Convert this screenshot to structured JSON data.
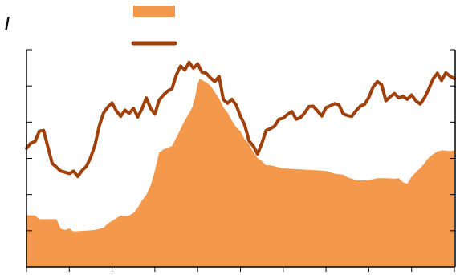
{
  "chart_data": {
    "type": "area",
    "title_mark": "/",
    "legend": {
      "placement": "top-center"
    },
    "x": {
      "range": [
        0,
        100
      ],
      "minor_ticks": 10
    },
    "y_left": {
      "range": [
        0,
        60
      ],
      "ticks": 6
    },
    "y_right": {
      "range": [
        0,
        60
      ],
      "ticks": 6
    },
    "colors": {
      "area": "#F4984C",
      "line": "#A0400A",
      "axis": "#000000"
    },
    "series": [
      {
        "kind": "area",
        "axis": "left",
        "color": "#F4984C",
        "points": [
          [
            0,
            14.3
          ],
          [
            2,
            14.2
          ],
          [
            3,
            13.2
          ],
          [
            7,
            13.2
          ],
          [
            8,
            10.6
          ],
          [
            9,
            10.2
          ],
          [
            10,
            10.6
          ],
          [
            11,
            9.8
          ],
          [
            14,
            10.0
          ],
          [
            16,
            10.2
          ],
          [
            18,
            10.8
          ],
          [
            19,
            12.0
          ],
          [
            20,
            12.7
          ],
          [
            22,
            14.2
          ],
          [
            24,
            14.2
          ],
          [
            25,
            14.9
          ],
          [
            26,
            16.4
          ],
          [
            27,
            18.4
          ],
          [
            28,
            19.9
          ],
          [
            29,
            22.5
          ],
          [
            30,
            26.6
          ],
          [
            31,
            31.6
          ],
          [
            32,
            32.5
          ],
          [
            34,
            33.4
          ],
          [
            35,
            35.7
          ],
          [
            36,
            38.1
          ],
          [
            37,
            40.5
          ],
          [
            38,
            42.4
          ],
          [
            39,
            44.7
          ],
          [
            40,
            50.5
          ],
          [
            40.5,
            52.1
          ],
          [
            41,
            51.6
          ],
          [
            42,
            51.0
          ],
          [
            43,
            50.1
          ],
          [
            44,
            48.3
          ],
          [
            45,
            46.5
          ],
          [
            46,
            44.1
          ],
          [
            47,
            42.6
          ],
          [
            48,
            40.4
          ],
          [
            49,
            38.6
          ],
          [
            50,
            37.5
          ],
          [
            51,
            35.2
          ],
          [
            52,
            33.9
          ],
          [
            53,
            31.8
          ],
          [
            54,
            30.1
          ],
          [
            55,
            29.3
          ],
          [
            56,
            28.1
          ],
          [
            57,
            28.1
          ],
          [
            58,
            27.8
          ],
          [
            60,
            27.2
          ],
          [
            62,
            27.1
          ],
          [
            64,
            27.0
          ],
          [
            66,
            26.8
          ],
          [
            68,
            26.7
          ],
          [
            70,
            26.5
          ],
          [
            72,
            25.8
          ],
          [
            74,
            25.5
          ],
          [
            75,
            24.8
          ],
          [
            77,
            24.0
          ],
          [
            78,
            23.9
          ],
          [
            80,
            24.0
          ],
          [
            82,
            24.5
          ],
          [
            84,
            24.5
          ],
          [
            86,
            24.4
          ],
          [
            87,
            24.5
          ],
          [
            88,
            23.4
          ],
          [
            89,
            23.0
          ],
          [
            90,
            24.9
          ],
          [
            91,
            26.2
          ],
          [
            92,
            27.3
          ],
          [
            93,
            28.6
          ],
          [
            94,
            30.2
          ],
          [
            95,
            31.1
          ],
          [
            96,
            31.9
          ],
          [
            97,
            32.2
          ],
          [
            98,
            32.2
          ],
          [
            99,
            32.0
          ],
          [
            100,
            32.2
          ]
        ]
      },
      {
        "kind": "line",
        "axis": "right",
        "color": "#A0400A",
        "points": [
          [
            0,
            32.8
          ],
          [
            1,
            34.2
          ],
          [
            2,
            34.7
          ],
          [
            3,
            37.5
          ],
          [
            4,
            37.7
          ],
          [
            5,
            33.1
          ],
          [
            6,
            28.6
          ],
          [
            7,
            27.6
          ],
          [
            8,
            26.5
          ],
          [
            9,
            26.2
          ],
          [
            10,
            25.8
          ],
          [
            11,
            26.5
          ],
          [
            12,
            25.0
          ],
          [
            13,
            26.7
          ],
          [
            14,
            27.8
          ],
          [
            15,
            30.3
          ],
          [
            16,
            33.7
          ],
          [
            17,
            38.9
          ],
          [
            18,
            42.5
          ],
          [
            19,
            44.2
          ],
          [
            20,
            45.3
          ],
          [
            21,
            43.1
          ],
          [
            22,
            41.6
          ],
          [
            23,
            43.3
          ],
          [
            24,
            42.4
          ],
          [
            25,
            43.8
          ],
          [
            26,
            41.4
          ],
          [
            27,
            43.7
          ],
          [
            28,
            46.7
          ],
          [
            29,
            43.8
          ],
          [
            30,
            42.2
          ],
          [
            31,
            46.1
          ],
          [
            32,
            47.5
          ],
          [
            33,
            48.6
          ],
          [
            34,
            49.2
          ],
          [
            35,
            53.0
          ],
          [
            36,
            55.5
          ],
          [
            37,
            54.4
          ],
          [
            38,
            56.5
          ],
          [
            39,
            54.9
          ],
          [
            40,
            56.1
          ],
          [
            41,
            53.8
          ],
          [
            42,
            53.5
          ],
          [
            43,
            52.2
          ],
          [
            44,
            51.2
          ],
          [
            45,
            52.6
          ],
          [
            46,
            46.2
          ],
          [
            47,
            45.2
          ],
          [
            48,
            46.3
          ],
          [
            49,
            44.7
          ],
          [
            50,
            41.6
          ],
          [
            51,
            39.2
          ],
          [
            52,
            34.8
          ],
          [
            53,
            33.4
          ],
          [
            54,
            31.2
          ],
          [
            55,
            34.2
          ],
          [
            56,
            37.7
          ],
          [
            57,
            38.2
          ],
          [
            58,
            38.9
          ],
          [
            59,
            40.8
          ],
          [
            60,
            41.1
          ],
          [
            61,
            42.1
          ],
          [
            62,
            42.9
          ],
          [
            63,
            40.8
          ],
          [
            64,
            41.2
          ],
          [
            65,
            42.5
          ],
          [
            66,
            44.3
          ],
          [
            67,
            44.4
          ],
          [
            68,
            43.1
          ],
          [
            69,
            41.7
          ],
          [
            70,
            44.0
          ],
          [
            71,
            44.5
          ],
          [
            72,
            45.1
          ],
          [
            73,
            44.8
          ],
          [
            74,
            42.3
          ],
          [
            75,
            41.8
          ],
          [
            76,
            41.6
          ],
          [
            77,
            43.1
          ],
          [
            78,
            44.4
          ],
          [
            79,
            44.9
          ],
          [
            80,
            46.8
          ],
          [
            81,
            49.7
          ],
          [
            82,
            51.2
          ],
          [
            83,
            50.3
          ],
          [
            84,
            45.9
          ],
          [
            85,
            47.0
          ],
          [
            86,
            47.9
          ],
          [
            87,
            46.7
          ],
          [
            88,
            47.1
          ],
          [
            89,
            46.3
          ],
          [
            90,
            47.5
          ],
          [
            91,
            45.9
          ],
          [
            92,
            45.0
          ],
          [
            93,
            46.7
          ],
          [
            94,
            49.1
          ],
          [
            95,
            51.9
          ],
          [
            96,
            53.5
          ],
          [
            97,
            51.5
          ],
          [
            98,
            53.6
          ],
          [
            99,
            52.7
          ],
          [
            100,
            52.0
          ]
        ]
      }
    ]
  }
}
